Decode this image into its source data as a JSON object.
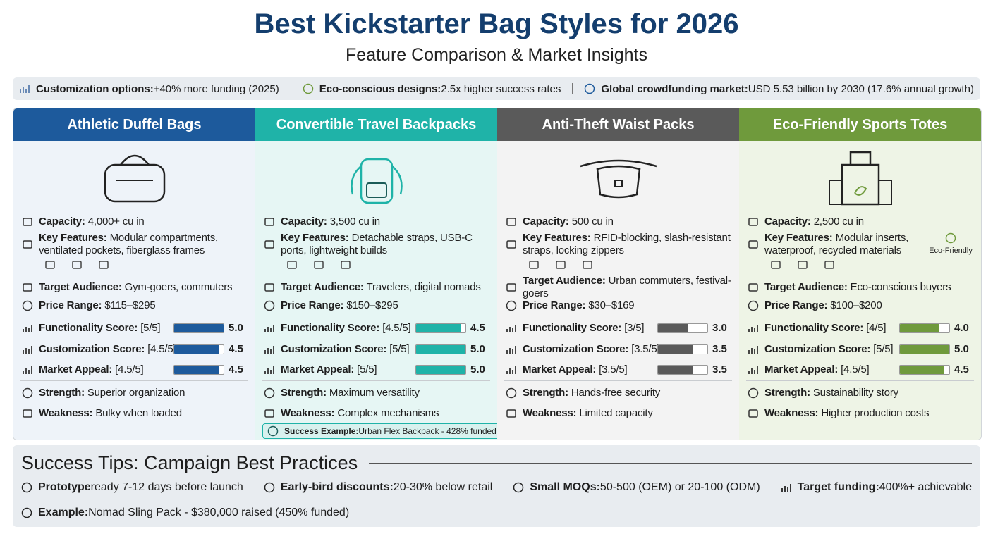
{
  "header": {
    "title": "Best Kickstarter Bag Styles for 2026",
    "subtitle": "Feature Comparison & Market Insights"
  },
  "stats": [
    {
      "label": "Customization options:",
      "text": "+40% more funding (2025)"
    },
    {
      "label": "Eco-conscious designs:",
      "text": "2.5x higher success rates"
    },
    {
      "label": "Global crowdfunding market:",
      "text": "USD 5.53 billion by 2030 (17.6% annual growth)"
    }
  ],
  "score_range": [
    0,
    5
  ],
  "columns": [
    {
      "title": "Athletic Duffel Bags",
      "color": "#1d5a9c",
      "tint": "#eef3f9",
      "details": [
        {
          "label": "Capacity:",
          "text": "4,000+ cu in"
        },
        {
          "label": "Key Features:",
          "text": "Modular compartments, ventilated pockets, fiberglass frames"
        },
        {
          "label": "Target Audience:",
          "text": "Gym-goers, commuters"
        },
        {
          "label": "Price Range:",
          "text": "$115–$295"
        }
      ],
      "scores": [
        {
          "label": "Functionality Score:",
          "rating": "[5/5]",
          "score": {
            "value": 5,
            "label": "5.0"
          }
        },
        {
          "label": "Customization Score:",
          "rating": "[4.5/5]",
          "score": 4.5
        },
        {
          "label": "Market Appeal:",
          "rating": "[4.5/5]",
          "score": 4.5
        }
      ],
      "notes": [
        {
          "label": "Strength:",
          "text": "Superior organization"
        },
        {
          "label": "Weakness:",
          "text": "Bulky when loaded"
        }
      ]
    },
    {
      "title": "Convertible Travel Backpacks",
      "color": "#1fb3a8",
      "tint": "#e6f6f4",
      "details": [
        {
          "label": "Capacity:",
          "text": "3,500 cu in"
        },
        {
          "label": "Key Features:",
          "text": "Detachable straps, USB-C ports, lightweight builds"
        },
        {
          "label": "Target Audience:",
          "text": "Travelers, digital nomads"
        },
        {
          "label": "Price Range:",
          "text": "$150–$295"
        }
      ],
      "scores": [
        {
          "label": "Functionality Score:",
          "rating": "[4.5/5]",
          "score": 4.5
        },
        {
          "label": "Customization Score:",
          "rating": "[5/5]",
          "score": {
            "value": 5,
            "label": "5.0"
          }
        },
        {
          "label": "Market Appeal:",
          "rating": "[5/5]",
          "score": {
            "value": 5,
            "label": "5.0"
          }
        }
      ],
      "notes": [
        {
          "label": "Strength:",
          "text": "Maximum versatility"
        },
        {
          "label": "Weakness:",
          "text": "Complex mechanisms"
        }
      ],
      "example": {
        "label": "Success Example:",
        "text": "Urban Flex Backpack - 428% funded"
      }
    },
    {
      "title": "Anti-Theft Waist Packs",
      "color": "#5a5a5a",
      "tint": "#f3f3f3",
      "details": [
        {
          "label": "Capacity:",
          "text": "500 cu in"
        },
        {
          "label": "Key Features:",
          "text": "RFID-blocking, slash-resistant straps, locking zippers"
        },
        {
          "label": "Target Audience:",
          "text": "Urban commuters, festival-goers"
        },
        {
          "label": "Price Range:",
          "text": "$30–$169"
        }
      ],
      "scores": [
        {
          "label": "Functionality Score:",
          "rating": "[3/5]",
          "score": {
            "value": 3,
            "label": "3.0"
          }
        },
        {
          "label": "Customization Score:",
          "rating": "[3.5/5]",
          "score": 3.5
        },
        {
          "label": "Market Appeal:",
          "rating": "[3.5/5]",
          "score": 3.5
        }
      ],
      "notes": [
        {
          "label": "Strength:",
          "text": "Hands-free security"
        },
        {
          "label": "Weakness:",
          "text": "Limited capacity"
        }
      ]
    },
    {
      "title": "Eco-Friendly Sports Totes",
      "color": "#6f9a3c",
      "tint": "#eef4e6",
      "details": [
        {
          "label": "Capacity:",
          "text": "2,500 cu in"
        },
        {
          "label": "Key Features:",
          "text": "Modular inserts, waterproof, recycled materials"
        },
        {
          "label": "Target Audience:",
          "text": "Eco-conscious buyers"
        },
        {
          "label": "Price Range:",
          "text": "$100–$200"
        }
      ],
      "scores": [
        {
          "label": "Functionality Score:",
          "rating": "[4/5]",
          "score": {
            "value": 4,
            "label": "4.0"
          }
        },
        {
          "label": "Customization Score:",
          "rating": "[5/5]",
          "score": {
            "value": 5,
            "label": "5.0"
          }
        },
        {
          "label": "Market Appeal:",
          "rating": "[4.5/5]",
          "score": 4.5
        }
      ],
      "notes": [
        {
          "label": "Strength:",
          "text": "Sustainability story"
        },
        {
          "label": "Weakness:",
          "text": "Higher production costs"
        }
      ],
      "badge": "Eco-Friendly"
    }
  ],
  "tips": {
    "title": "Success Tips: Campaign Best Practices",
    "items": [
      {
        "label": "Prototype",
        "text": "ready 7-12 days before launch"
      },
      {
        "label": "Early-bird discounts:",
        "text": "20-30% below retail"
      },
      {
        "label": "Small MOQs:",
        "text": "50-500 (OEM) or 20-100 (ODM)"
      },
      {
        "label": "Target funding:",
        "text": "400%+ achievable"
      }
    ],
    "example": {
      "label": "Example:",
      "text": "Nomad Sling Pack - $380,000 raised (450% funded)"
    }
  }
}
